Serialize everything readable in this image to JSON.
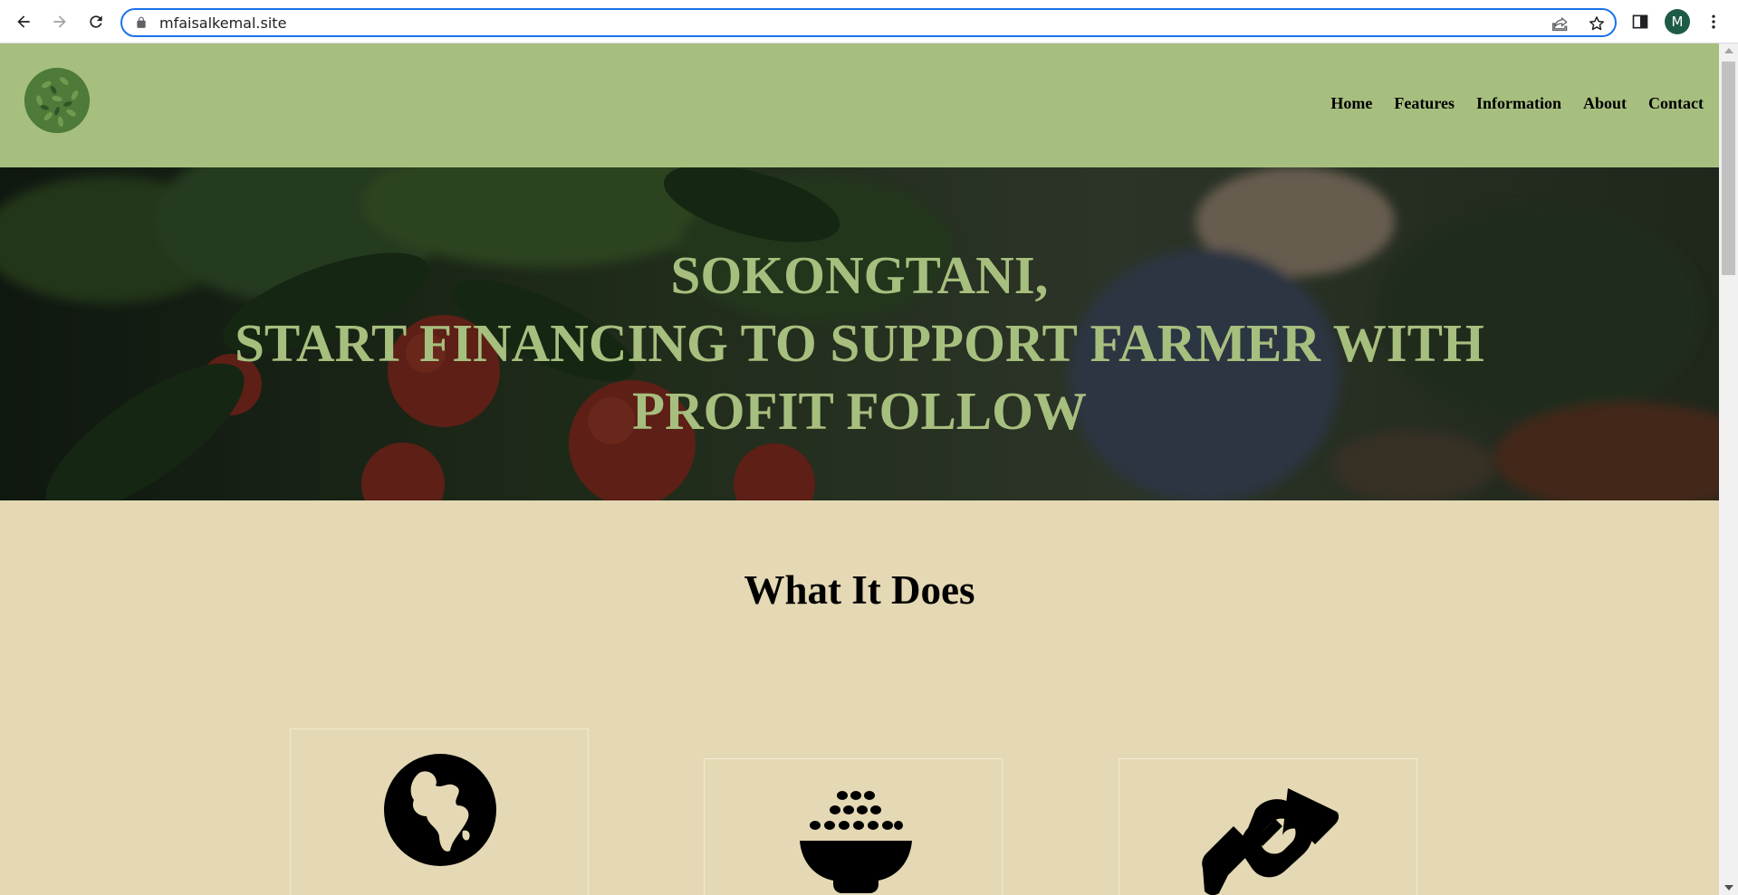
{
  "browser": {
    "url": "mfaisalkemal.site",
    "profile_initial": "M",
    "icons": [
      "back-arrow-icon",
      "forward-arrow-icon",
      "reload-icon",
      "lock-icon",
      "share-icon",
      "bookmark-star-icon",
      "side-panel-icon",
      "more-vert-icon"
    ]
  },
  "site": {
    "nav": {
      "home": "Home",
      "features": "Features",
      "information": "Information",
      "about": "About",
      "contact": "Contact"
    },
    "hero": {
      "line1": "SOKONGTANI,",
      "line2": "START FINANCING TO SUPPORT FARMER WITH",
      "line3": "PROFIT FOLLOW"
    },
    "section_title": "What It Does",
    "cards": [
      {
        "icon": "globe-africa-icon"
      },
      {
        "icon": "rice-bowl-icon"
      },
      {
        "icon": "handshake-icon"
      }
    ]
  },
  "colors": {
    "header_bg": "#a7bf7e",
    "hero_text": "#a7bf7e",
    "page_bg": "#e4d9b4",
    "avatar_bg": "#1e5b47",
    "omnibox_border": "#1a73e8"
  }
}
